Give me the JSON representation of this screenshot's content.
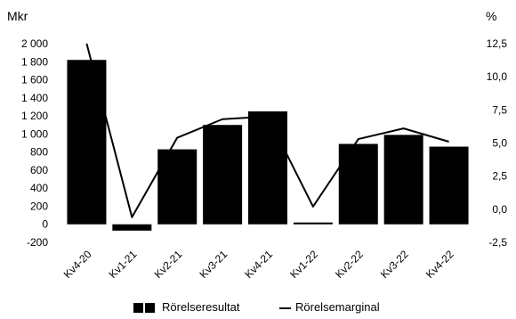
{
  "chart_data": {
    "type": "bar",
    "categories": [
      "Kv4-20",
      "Kv1-21",
      "Kv2-21",
      "Kv3-21",
      "Kv4-21",
      "Kv1-22",
      "Kv2-22",
      "Kv3-22",
      "Kv4-22"
    ],
    "series": [
      {
        "name": "Rörelseresultat",
        "type": "bar",
        "axis": "left",
        "values": [
          1820,
          -70,
          830,
          1100,
          1250,
          20,
          890,
          990,
          860
        ]
      },
      {
        "name": "Rörelsemarginal",
        "type": "line",
        "axis": "right",
        "values": [
          12.5,
          -0.6,
          5.4,
          6.8,
          7.0,
          0.2,
          5.3,
          6.1,
          5.1
        ]
      }
    ],
    "left_axis": {
      "label": "Mkr",
      "ylim": [
        -200,
        2000
      ],
      "ticks": [
        -200,
        0,
        200,
        400,
        600,
        800,
        1000,
        1200,
        1400,
        1600,
        1800,
        2000
      ],
      "tick_labels": [
        "-200",
        "0",
        "200",
        "400",
        "600",
        "800",
        "1 000",
        "1 200",
        "1 400",
        "1 600",
        "1 800",
        "2 000"
      ]
    },
    "right_axis": {
      "label": "%",
      "ylim": [
        -2.5,
        12.5
      ],
      "ticks": [
        -2.5,
        0,
        2.5,
        5,
        7.5,
        10,
        12.5
      ],
      "tick_labels": [
        "-2,5",
        "0,0",
        "2,5",
        "5,0",
        "7,5",
        "10,0",
        "12,5"
      ]
    },
    "grid": false,
    "legend_position": "bottom-center",
    "colors": {
      "bar": "#000000",
      "line": "#000000"
    }
  }
}
